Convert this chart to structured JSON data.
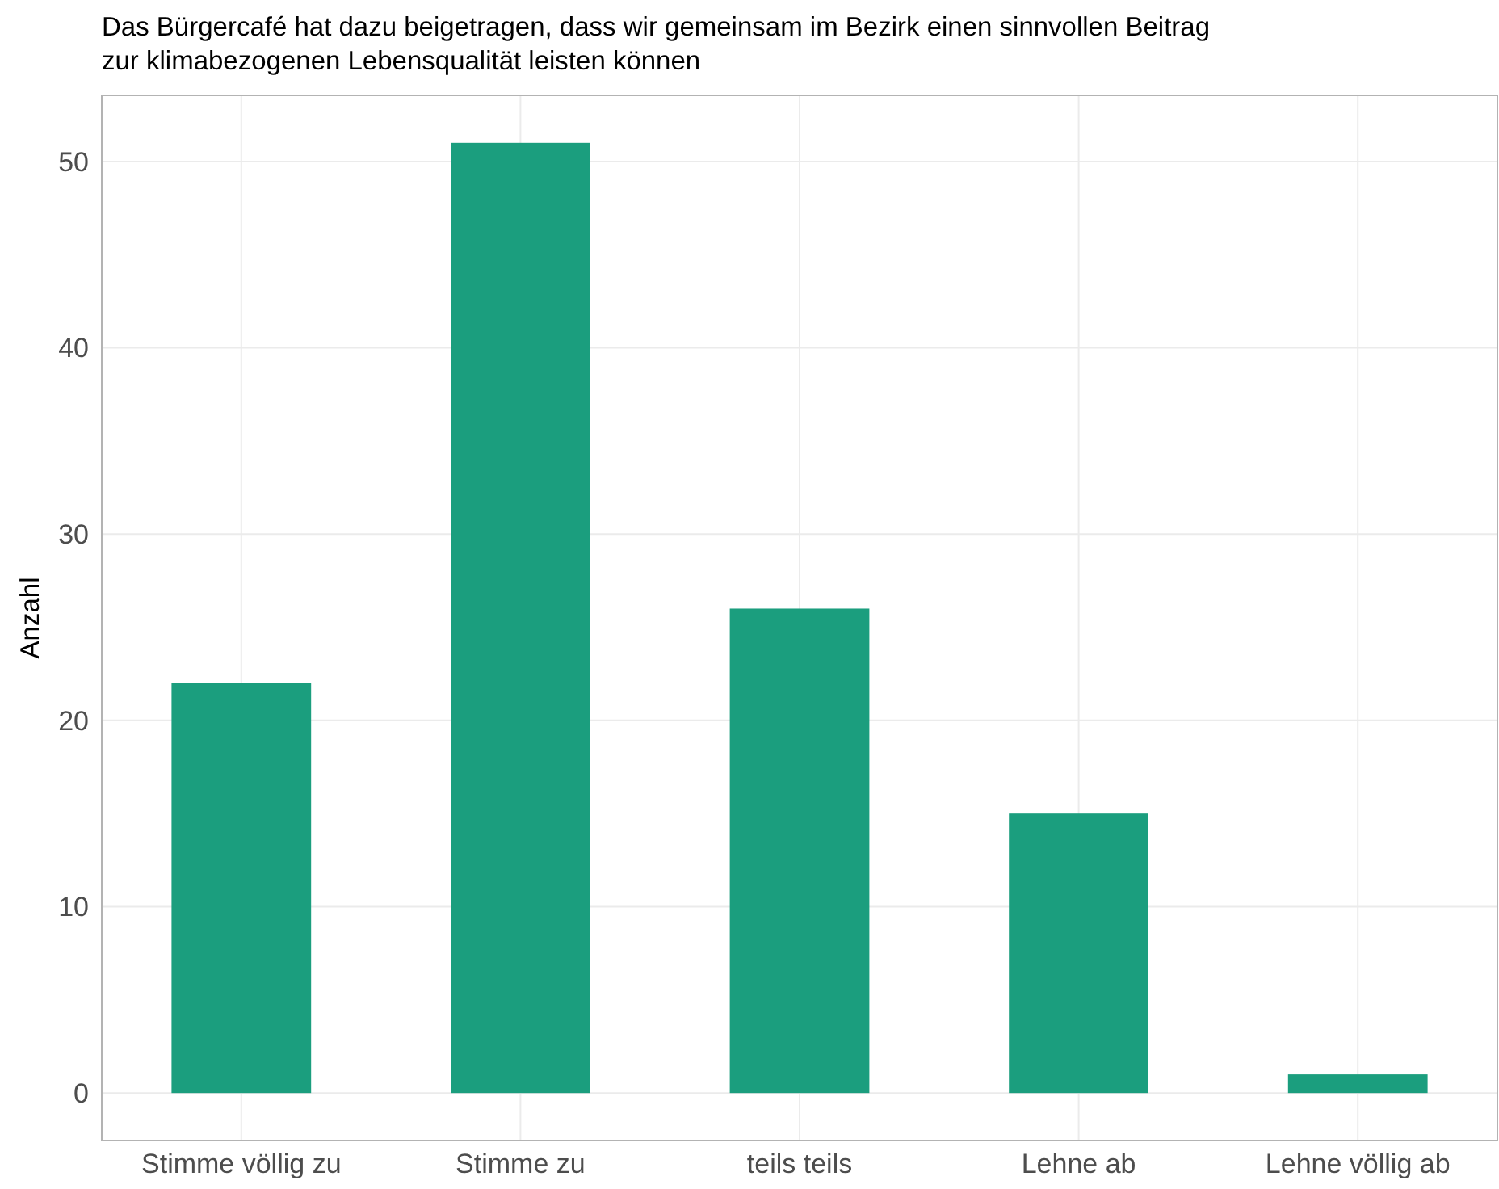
{
  "chart_data": {
    "type": "bar",
    "title": "Das Bürgercafé hat dazu beigetragen, dass wir gemeinsam im Bezirk einen sinnvollen Beitrag\nzur klimabezogenen Lebensqualität leisten können",
    "ylabel": "Anzahl",
    "categories": [
      "Stimme völlig zu",
      "Stimme zu",
      "teils teils",
      "Lehne ab",
      "Lehne völlig ab"
    ],
    "values": [
      22,
      51,
      26,
      15,
      1
    ],
    "color": "#1b9e7e",
    "ylim": [
      -2.55,
      53.55
    ],
    "yticks": [
      0,
      10,
      20,
      30,
      40,
      50
    ],
    "grid": true
  }
}
